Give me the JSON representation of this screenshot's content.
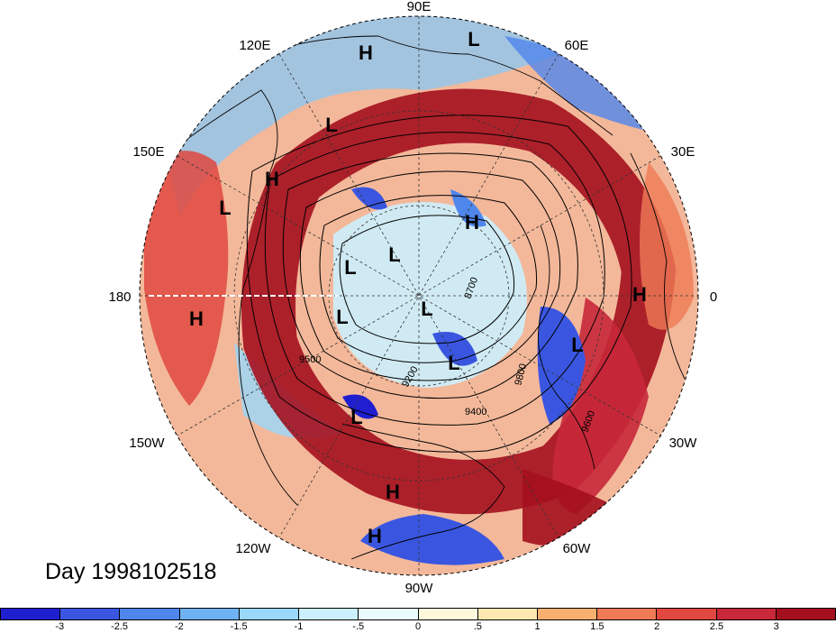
{
  "title": "Day 1998102518",
  "longitude_labels": [
    "90E",
    "120E",
    "60E",
    "150E",
    "30E",
    "180",
    "0",
    "150W",
    "30W",
    "120W",
    "60W",
    "90W"
  ],
  "pressure_centers": [
    {
      "label": "H"
    },
    {
      "label": "L"
    },
    {
      "label": "L"
    },
    {
      "label": "H"
    },
    {
      "label": "L"
    },
    {
      "label": "H"
    },
    {
      "label": "L"
    },
    {
      "label": "L"
    },
    {
      "label": "L"
    },
    {
      "label": "H"
    },
    {
      "label": "L"
    },
    {
      "label": "L"
    },
    {
      "label": "L"
    },
    {
      "label": "H"
    },
    {
      "label": "L"
    },
    {
      "label": "L"
    },
    {
      "label": "H"
    },
    {
      "label": "H"
    }
  ],
  "contour_labels": [
    "9500",
    "9200",
    "9400",
    "8700",
    "9800",
    "9600"
  ],
  "colorbar": {
    "colors": [
      "#1f1fd0",
      "#3a56e0",
      "#4f86ec",
      "#6fb2f4",
      "#99d8fa",
      "#ccf0fd",
      "#eafbfd",
      "#fdf8dc",
      "#fde8b0",
      "#f7b070",
      "#ef7a55",
      "#e14840",
      "#c8283a",
      "#a4101e"
    ],
    "tick_labels": [
      "-3",
      "-2.5",
      "-2",
      "-1.5",
      "-1",
      "-.5",
      "0",
      ".5",
      "1",
      "1.5",
      "2",
      "2.5",
      "3"
    ]
  }
}
